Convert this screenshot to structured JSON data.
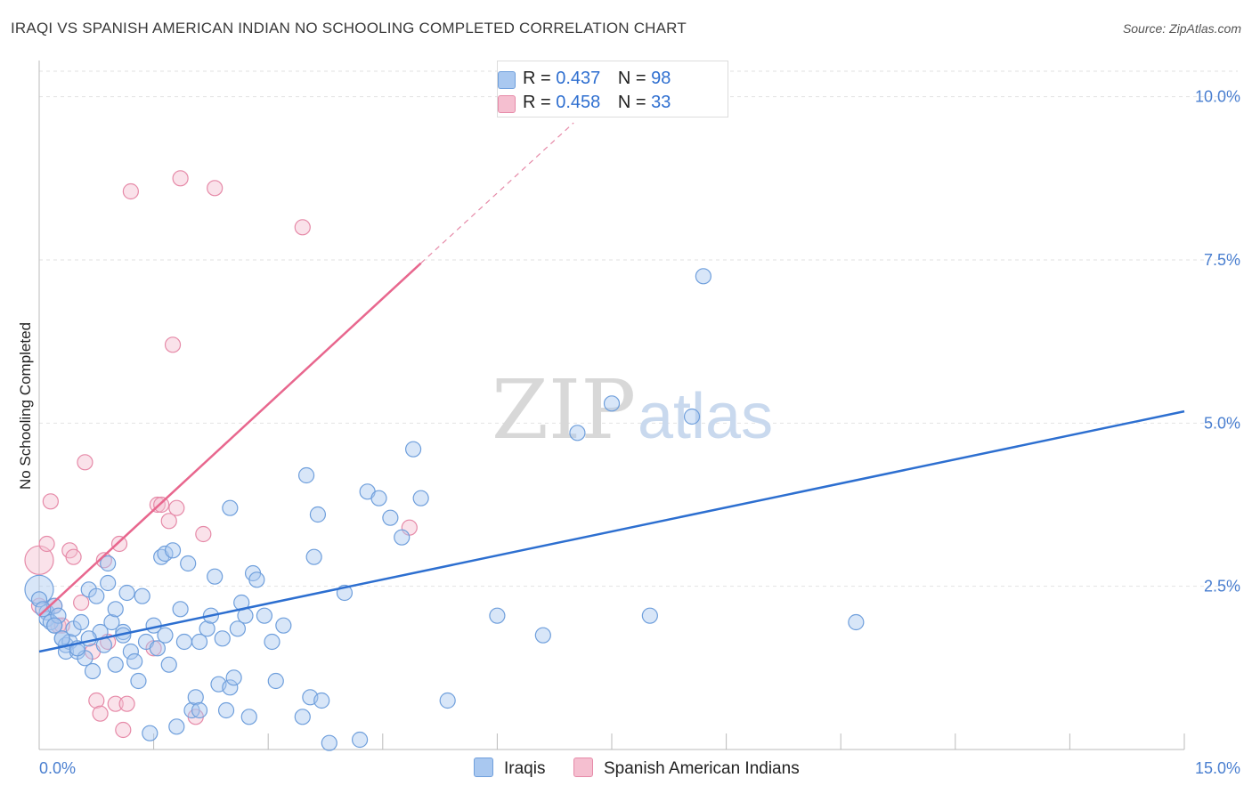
{
  "title": "IRAQI VS SPANISH AMERICAN INDIAN NO SCHOOLING COMPLETED CORRELATION CHART",
  "source": "Source: ZipAtlas.com",
  "watermark": {
    "zip": "ZIP",
    "atlas": "atlas"
  },
  "legend": {
    "r_label": "R =",
    "n_label": "N =",
    "rows": [
      {
        "name": "Iraqis",
        "r": "0.437",
        "n": "98"
      },
      {
        "name": "Spanish American Indians",
        "r": "0.458",
        "n": "33"
      }
    ]
  },
  "colors": {
    "blue_fill": "#a9c8f0",
    "blue_stroke": "#6f9fdc",
    "blue_line": "#2d6fd0",
    "pink_fill": "#f5bfd0",
    "pink_stroke": "#e68aa8",
    "pink_line": "#e8678e",
    "tick_text": "#4a7fd0",
    "grid": "#e2e2e2"
  },
  "chart_data": {
    "type": "scatter",
    "title": "IRAQI VS SPANISH AMERICAN INDIAN NO SCHOOLING COMPLETED CORRELATION CHART",
    "xlabel": "",
    "ylabel": "No Schooling Completed",
    "xlim": [
      0,
      15
    ],
    "ylim": [
      0,
      10.5
    ],
    "x_tick_labels": [
      "0.0%",
      "15.0%"
    ],
    "y_ticks": [
      2.5,
      5.0,
      7.5,
      10.0
    ],
    "y_tick_labels": [
      "2.5%",
      "5.0%",
      "7.5%",
      "10.0%"
    ],
    "series": [
      {
        "name": "Iraqis",
        "color": "blue",
        "trendline": {
          "x": [
            0,
            15
          ],
          "y": [
            1.5,
            5.18
          ]
        },
        "points": [
          [
            0.0,
            2.45
          ],
          [
            0.0,
            2.3
          ],
          [
            0.1,
            2.1
          ],
          [
            0.1,
            2.0
          ],
          [
            0.15,
            1.95
          ],
          [
            0.2,
            2.2
          ],
          [
            0.2,
            1.9
          ],
          [
            0.25,
            2.05
          ],
          [
            0.3,
            1.7
          ],
          [
            0.35,
            1.6
          ],
          [
            0.4,
            1.65
          ],
          [
            0.35,
            1.5
          ],
          [
            0.5,
            1.5
          ],
          [
            0.45,
            1.85
          ],
          [
            0.55,
            1.95
          ],
          [
            0.6,
            1.4
          ],
          [
            0.65,
            2.45
          ],
          [
            0.7,
            1.2
          ],
          [
            0.75,
            2.35
          ],
          [
            0.8,
            1.8
          ],
          [
            0.85,
            1.6
          ],
          [
            0.9,
            2.85
          ],
          [
            0.9,
            2.55
          ],
          [
            0.95,
            1.95
          ],
          [
            1.0,
            2.15
          ],
          [
            1.0,
            1.3
          ],
          [
            1.1,
            1.8
          ],
          [
            1.15,
            2.4
          ],
          [
            1.2,
            1.5
          ],
          [
            1.25,
            1.35
          ],
          [
            1.3,
            1.05
          ],
          [
            1.35,
            2.35
          ],
          [
            1.4,
            1.65
          ],
          [
            1.45,
            0.25
          ],
          [
            1.5,
            1.9
          ],
          [
            1.55,
            1.55
          ],
          [
            1.6,
            2.95
          ],
          [
            1.65,
            1.75
          ],
          [
            1.7,
            1.3
          ],
          [
            1.65,
            3.0
          ],
          [
            1.75,
            3.05
          ],
          [
            1.8,
            0.35
          ],
          [
            1.85,
            2.15
          ],
          [
            1.9,
            1.65
          ],
          [
            1.95,
            2.85
          ],
          [
            2.0,
            0.6
          ],
          [
            2.05,
            0.8
          ],
          [
            2.1,
            0.6
          ],
          [
            2.1,
            1.65
          ],
          [
            2.2,
            1.85
          ],
          [
            2.25,
            2.05
          ],
          [
            2.3,
            2.65
          ],
          [
            2.35,
            1.0
          ],
          [
            2.4,
            1.7
          ],
          [
            2.45,
            0.6
          ],
          [
            2.5,
            3.7
          ],
          [
            2.5,
            0.95
          ],
          [
            2.55,
            1.1
          ],
          [
            2.6,
            1.85
          ],
          [
            2.65,
            2.25
          ],
          [
            2.7,
            2.05
          ],
          [
            2.75,
            0.5
          ],
          [
            2.8,
            2.7
          ],
          [
            2.85,
            2.6
          ],
          [
            2.95,
            2.05
          ],
          [
            3.05,
            1.65
          ],
          [
            3.1,
            1.05
          ],
          [
            3.2,
            1.9
          ],
          [
            3.45,
            0.5
          ],
          [
            3.5,
            4.2
          ],
          [
            3.55,
            0.8
          ],
          [
            3.6,
            2.95
          ],
          [
            3.65,
            3.6
          ],
          [
            3.7,
            0.75
          ],
          [
            3.8,
            0.1
          ],
          [
            4.0,
            2.4
          ],
          [
            4.2,
            0.15
          ],
          [
            4.3,
            3.95
          ],
          [
            4.45,
            3.85
          ],
          [
            4.6,
            3.55
          ],
          [
            4.75,
            3.25
          ],
          [
            4.9,
            4.6
          ],
          [
            5.0,
            3.85
          ],
          [
            5.35,
            0.75
          ],
          [
            6.0,
            2.05
          ],
          [
            6.6,
            1.75
          ],
          [
            7.05,
            4.85
          ],
          [
            7.5,
            5.3
          ],
          [
            8.0,
            2.05
          ],
          [
            8.55,
            5.1
          ],
          [
            8.7,
            7.25
          ],
          [
            10.7,
            1.95
          ],
          [
            0.3,
            1.7
          ],
          [
            0.5,
            1.55
          ],
          [
            0.65,
            1.7
          ],
          [
            1.1,
            1.75
          ],
          [
            0.2,
            1.9
          ],
          [
            0.05,
            2.15
          ]
        ]
      },
      {
        "name": "Spanish American Indians",
        "color": "pink",
        "trendline": {
          "x": [
            0,
            5.0
          ],
          "y": [
            2.05,
            7.45
          ],
          "dashed_to": {
            "x": 7.0,
            "y": 9.6
          }
        },
        "points": [
          [
            0.0,
            2.9
          ],
          [
            0.0,
            2.2
          ],
          [
            0.1,
            3.15
          ],
          [
            0.15,
            3.8
          ],
          [
            0.2,
            2.2
          ],
          [
            0.25,
            1.9
          ],
          [
            0.3,
            1.9
          ],
          [
            0.4,
            3.05
          ],
          [
            0.45,
            2.95
          ],
          [
            0.55,
            2.25
          ],
          [
            0.6,
            4.4
          ],
          [
            0.7,
            1.5
          ],
          [
            0.75,
            0.75
          ],
          [
            0.8,
            0.55
          ],
          [
            0.85,
            2.9
          ],
          [
            0.9,
            1.65
          ],
          [
            1.0,
            0.7
          ],
          [
            1.05,
            3.15
          ],
          [
            1.1,
            0.3
          ],
          [
            1.15,
            0.7
          ],
          [
            1.2,
            8.55
          ],
          [
            1.5,
            1.55
          ],
          [
            1.55,
            3.75
          ],
          [
            1.6,
            3.75
          ],
          [
            1.7,
            3.5
          ],
          [
            1.75,
            6.2
          ],
          [
            1.8,
            3.7
          ],
          [
            1.85,
            8.75
          ],
          [
            2.05,
            0.5
          ],
          [
            2.15,
            3.3
          ],
          [
            2.3,
            8.6
          ],
          [
            3.45,
            8.0
          ],
          [
            4.85,
            3.4
          ]
        ]
      }
    ]
  },
  "axis": {
    "y_title": "No Schooling Completed",
    "x_min_label": "0.0%",
    "x_max_label": "15.0%"
  }
}
